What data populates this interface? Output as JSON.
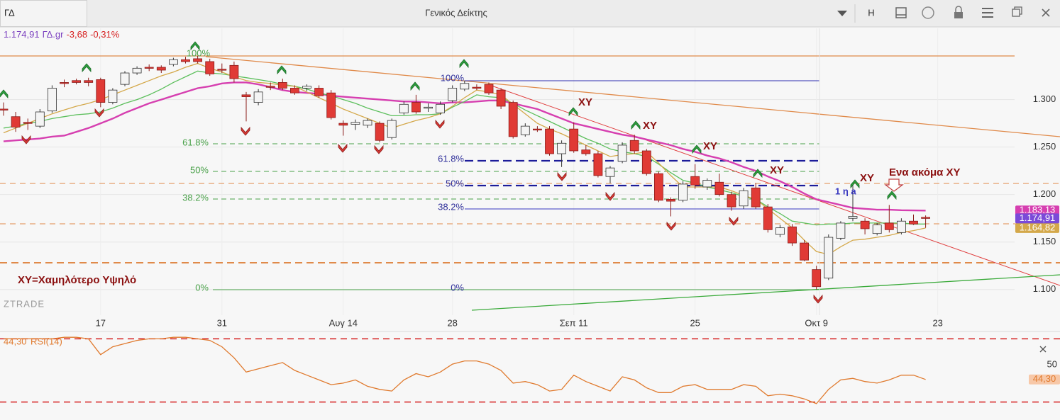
{
  "window": {
    "symbol": "ΓΔ",
    "title": "Γενικός Δείκτης",
    "button": "H"
  },
  "quote": {
    "price": "1.174,91",
    "symbol": "ΓΔ.gr",
    "change": "-3,68",
    "change_pct": "-0,31%"
  },
  "annotations": {
    "fib_a": [
      "100%",
      "61.8%",
      "50%",
      "38.2%",
      "0%"
    ],
    "fib_b": [
      "100%",
      "61.8%",
      "50%",
      "38.2%",
      "0%"
    ],
    "xy": [
      "XY",
      "XY",
      "XY",
      "XY",
      "XY"
    ],
    "note": "Ενα ακόμα XY",
    "wave": "1 η a",
    "legend_note": "XY=Χαμηλότερο Υψηλό",
    "watermark": "ZTRADE"
  },
  "chart_data": [
    {
      "type": "candlestick",
      "up_color": "#f4f4f4",
      "down_color": "#e03a35",
      "price_label": "1.174,91",
      "price_label_color": "#7a4ad8",
      "categories": [
        null,
        null,
        null,
        null,
        null,
        null,
        null,
        null,
        "17",
        null,
        null,
        null,
        null,
        null,
        null,
        null,
        null,
        null,
        "31",
        null,
        null,
        null,
        null,
        null,
        null,
        null,
        null,
        null,
        "Αυγ 14",
        null,
        null,
        null,
        null,
        null,
        null,
        null,
        null,
        "28",
        null,
        null,
        null,
        null,
        null,
        null,
        null,
        null,
        null,
        "Σεπ 11",
        null,
        null,
        null,
        null,
        null,
        null,
        null,
        null,
        null,
        "25",
        null,
        null,
        null,
        null,
        null,
        null,
        null,
        null,
        null,
        "Οκτ 9",
        null,
        null,
        null,
        null,
        null,
        null,
        null,
        null,
        null,
        "23"
      ],
      "open": [
        1290,
        1282,
        1276,
        1272,
        1288,
        1318,
        1320,
        1320,
        1321,
        1297,
        1316,
        1328,
        1334,
        1334,
        1337,
        1342,
        1343,
        1340,
        1332,
        1336,
        1305,
        1297,
        1314,
        1318,
        1312,
        1312,
        1312,
        1307,
        1275,
        1274,
        1273,
        1275,
        1260,
        1286,
        1297,
        1291,
        1286,
        1299,
        1311,
        1313,
        1316,
        1310,
        1297,
        1263,
        1269,
        1269,
        1243,
        1269,
        1247,
        1243,
        1219,
        1235,
        1257,
        1246,
        1222,
        1195,
        1194,
        1219,
        1208,
        1213,
        1200,
        1188,
        1207,
        1187,
        1158,
        1166,
        1149,
        1121,
        1112,
        1154,
        1175,
        1172,
        1159,
        1170,
        1160,
        1172,
        1176,
        null
      ],
      "high": [
        1297,
        1287,
        1280,
        1290,
        1315,
        1321,
        1322,
        1323,
        1323,
        1312,
        1330,
        1335,
        1337,
        1336,
        1344,
        1345,
        1346,
        1343,
        1338,
        1340,
        1308,
        1311,
        1318,
        1322,
        1315,
        1316,
        1315,
        1310,
        1278,
        1279,
        1280,
        1277,
        1280,
        1298,
        1305,
        1296,
        1298,
        1315,
        1320,
        1316,
        1318,
        1312,
        1299,
        1275,
        1272,
        1272,
        1257,
        1276,
        1252,
        1246,
        1230,
        1255,
        1263,
        1248,
        1224,
        1197,
        1214,
        1232,
        1217,
        1222,
        1203,
        1207,
        1212,
        1190,
        1168,
        1169,
        1152,
        1125,
        1158,
        1172,
        1211,
        1175,
        1170,
        1189,
        1175,
        1179,
        1178,
        null
      ],
      "low": [
        1283,
        1266,
        1268,
        1270,
        1286,
        1313,
        1316,
        1314,
        1292,
        1295,
        1314,
        1326,
        1330,
        1328,
        1335,
        1338,
        1338,
        1325,
        1328,
        1318,
        1277,
        1294,
        1310,
        1310,
        1305,
        1309,
        1302,
        1279,
        1262,
        1268,
        1270,
        1255,
        1258,
        1284,
        1285,
        1287,
        1284,
        1297,
        1309,
        1310,
        1305,
        1290,
        1259,
        1261,
        1266,
        1241,
        1229,
        1244,
        1241,
        1218,
        1212,
        1233,
        1243,
        1220,
        1192,
        1177,
        1192,
        1206,
        1205,
        1198,
        1183,
        1185,
        1185,
        1160,
        1155,
        1146,
        1130,
        1100,
        1110,
        1152,
        1172,
        1158,
        1157,
        1160,
        1158,
        1168,
        1165,
        null
      ],
      "close": [
        1289,
        1271,
        1275,
        1287,
        1312,
        1317,
        1318,
        1318,
        1297,
        1310,
        1328,
        1333,
        1333,
        1331,
        1342,
        1340,
        1340,
        1327,
        1331,
        1322,
        1303,
        1308,
        1313,
        1312,
        1307,
        1314,
        1304,
        1281,
        1273,
        1276,
        1278,
        1257,
        1278,
        1295,
        1287,
        1292,
        1295,
        1312,
        1317,
        1312,
        1307,
        1293,
        1261,
        1272,
        1268,
        1243,
        1254,
        1246,
        1243,
        1220,
        1228,
        1252,
        1246,
        1222,
        1194,
        1193,
        1211,
        1210,
        1215,
        1200,
        1187,
        1204,
        1187,
        1163,
        1165,
        1149,
        1131,
        1103,
        1155,
        1170,
        1177,
        1164,
        1168,
        1163,
        1172,
        1169,
        1174.91,
        null
      ],
      "lines": [
        {
          "color": "#d63fb0",
          "value_label": "1.183,13",
          "values": [
            1256,
            1257,
            1258,
            1259,
            1261,
            1262,
            1266,
            1270,
            1275,
            1280,
            1286,
            1291,
            1296,
            1300,
            1304,
            1308,
            1312,
            1314,
            1317,
            1318,
            1318,
            1316,
            1313,
            1310,
            1308,
            1307,
            1306,
            1304,
            1303,
            1302,
            1301,
            1300,
            1299,
            1298,
            1298,
            1297,
            1296,
            1297,
            1297,
            1298,
            1299,
            1299,
            1296,
            1293,
            1290,
            1285,
            1280,
            1275,
            1272,
            1269,
            1266,
            1263,
            1261,
            1258,
            1255,
            1252,
            1248,
            1245,
            1241,
            1238,
            1234,
            1229,
            1225,
            1219,
            1214,
            1208,
            1201,
            1195,
            1192,
            1189,
            1186,
            1185,
            1184,
            1184,
            1183.5,
            1183.3,
            1183.13,
            null
          ]
        },
        {
          "color": "#5cbf5c",
          "values": [
            1270,
            1272,
            1275,
            1277,
            1280,
            1282,
            1284,
            1285,
            1287,
            1291,
            1296,
            1300,
            1305,
            1311,
            1318,
            1324,
            1330,
            1328,
            1327,
            1325,
            1323,
            1321,
            1319,
            1316,
            1314,
            1311,
            1307,
            1304,
            1300,
            1296,
            1291,
            1287,
            1283,
            1283,
            1284,
            1284,
            1285,
            1292,
            1298,
            1305,
            1303,
            1302,
            1296,
            1289,
            1283,
            1277,
            1271,
            1265,
            1259,
            1254,
            1248,
            1245,
            1243,
            1240,
            1232,
            1223,
            1215,
            1212,
            1208,
            1205,
            1202,
            1198,
            1195,
            1187,
            1180,
            1172,
            1170,
            1168,
            1169,
            1169,
            1170,
            1170,
            1170,
            1170,
            1170,
            1169,
            1169,
            null
          ]
        },
        {
          "color": "#d4a84a",
          "value_label": "1.164,82",
          "values": [
            1265,
            1270,
            1275,
            1280,
            1285,
            1289,
            1293,
            1296,
            1300,
            1305,
            1310,
            1315,
            1320,
            1325,
            1329,
            1334,
            1338,
            1333,
            1329,
            1324,
            1320,
            1318,
            1317,
            1315,
            1314,
            1308,
            1302,
            1296,
            1290,
            1285,
            1280,
            1275,
            1270,
            1274,
            1278,
            1281,
            1285,
            1293,
            1302,
            1310,
            1308,
            1305,
            1295,
            1285,
            1275,
            1269,
            1264,
            1258,
            1252,
            1246,
            1240,
            1242,
            1243,
            1245,
            1233,
            1220,
            1208,
            1208,
            1208,
            1208,
            1204,
            1199,
            1195,
            1185,
            1175,
            1165,
            1152,
            1140,
            1137,
            1145,
            1152,
            1153,
            1155,
            1157,
            1160,
            1162,
            1164.82,
            null
          ]
        }
      ],
      "ylim": [
        1073,
        1375
      ],
      "yticks": [
        {
          "value": 1100,
          "label": "1.100"
        },
        {
          "value": 1150,
          "label": "1.150"
        },
        {
          "value": 1200,
          "label": "1.200"
        },
        {
          "value": 1250,
          "label": "1.250"
        },
        {
          "value": 1300,
          "label": "1.300"
        }
      ],
      "grid": true
    },
    {
      "type": "line",
      "name": "RSI(14)",
      "color": "#e07a2e",
      "value_label": "44,30",
      "values": [
        70,
        70,
        70,
        70,
        70,
        71,
        71,
        70,
        60,
        65,
        67,
        69,
        70,
        70,
        71,
        71,
        70,
        69,
        65,
        58,
        49,
        51,
        53,
        55,
        50,
        47,
        44,
        41,
        42,
        44,
        40,
        38,
        37,
        44,
        48,
        46,
        49,
        54,
        56,
        56,
        54,
        50,
        42,
        43,
        41,
        37,
        38,
        47,
        43,
        40,
        37,
        46,
        44,
        39,
        36,
        36,
        40,
        41,
        38,
        38,
        38,
        41,
        40,
        34,
        35,
        34,
        32,
        29,
        38,
        44,
        45,
        43,
        42,
        44,
        47,
        47,
        44.3,
        null
      ],
      "ylim": [
        20,
        76
      ],
      "yticks": [
        50
      ],
      "hlines": [
        30,
        70
      ],
      "hline_color": "#d62020"
    }
  ]
}
